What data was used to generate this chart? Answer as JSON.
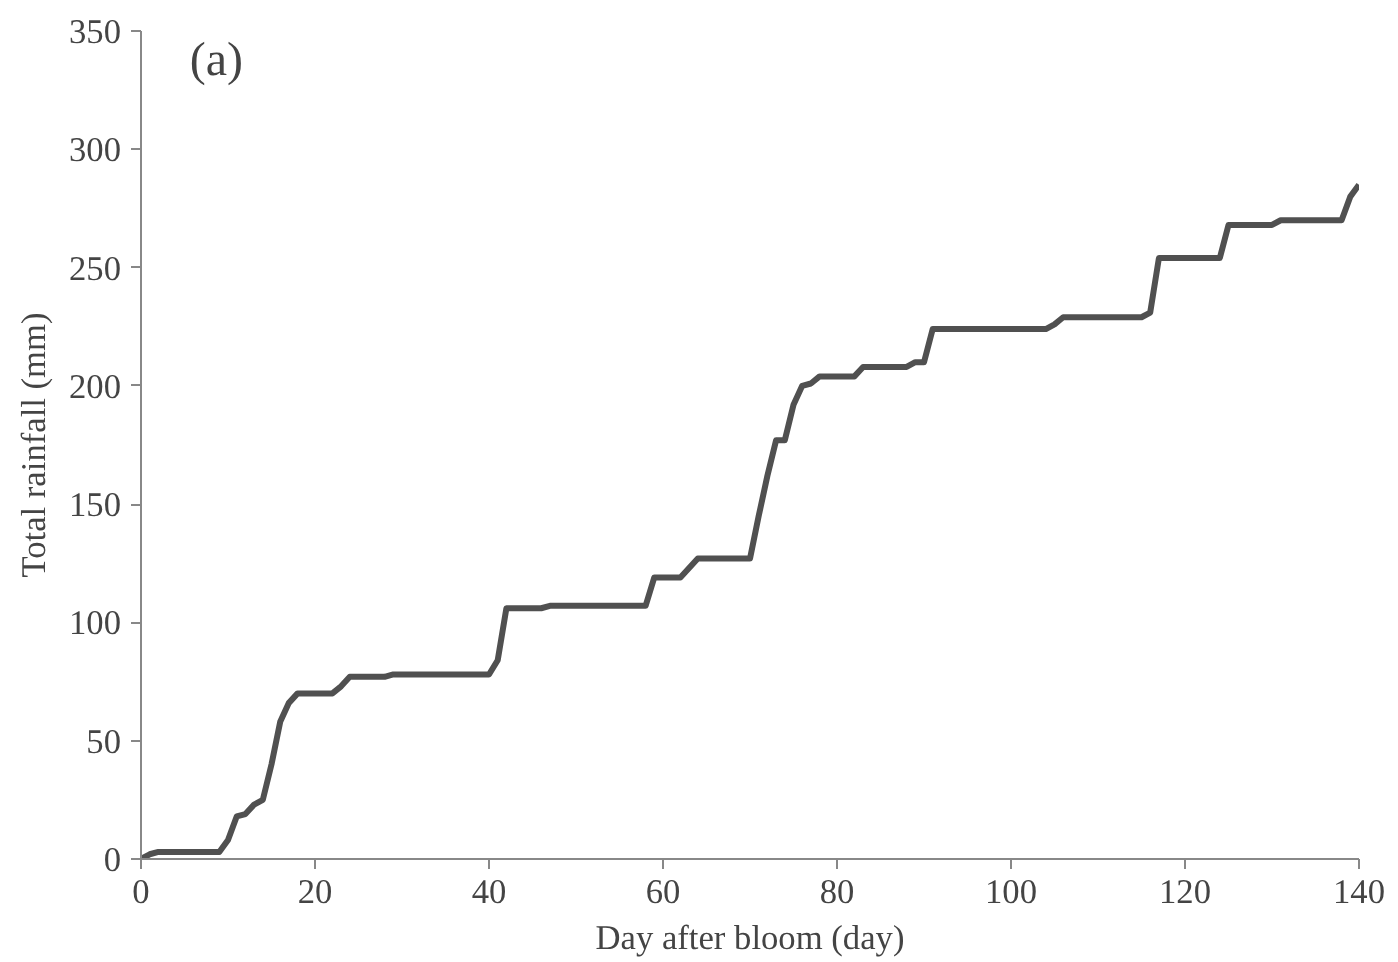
{
  "chart_data": {
    "type": "line",
    "xlabel": "Day after bloom (day)",
    "ylabel": "Total rainfall (mm)",
    "annotations": [
      "(a)"
    ],
    "x": [
      0,
      1,
      2,
      9,
      10,
      11,
      12,
      13,
      14,
      15,
      16,
      17,
      18,
      22,
      23,
      24,
      28,
      29,
      40,
      41,
      42,
      46,
      47,
      58,
      59,
      62,
      64,
      70,
      71,
      72,
      73,
      74,
      75,
      76,
      77,
      78,
      82,
      83,
      88,
      89,
      90,
      91,
      104,
      105,
      106,
      115,
      116,
      117,
      124,
      125,
      130,
      131,
      138,
      139,
      140
    ],
    "series": [
      {
        "color": "#505050",
        "values": [
          0,
          2,
          3,
          3,
          8,
          18,
          19,
          23,
          25,
          40,
          58,
          66,
          70,
          70,
          73,
          77,
          77,
          78,
          78,
          84,
          106,
          106,
          107,
          107,
          119,
          119,
          127,
          127,
          145,
          162,
          177,
          177,
          192,
          200,
          201,
          204,
          204,
          208,
          208,
          210,
          210,
          224,
          224,
          226,
          229,
          229,
          231,
          254,
          254,
          268,
          268,
          270,
          270,
          280,
          285
        ]
      }
    ],
    "xlim": [
      0,
      140
    ],
    "ylim": [
      0,
      350
    ],
    "xticks": [
      0,
      20,
      40,
      60,
      80,
      100,
      120,
      140
    ],
    "yticks": [
      0,
      50,
      100,
      150,
      200,
      250,
      300,
      350
    ],
    "grid": false,
    "marker": "none",
    "line_style": "solid"
  }
}
